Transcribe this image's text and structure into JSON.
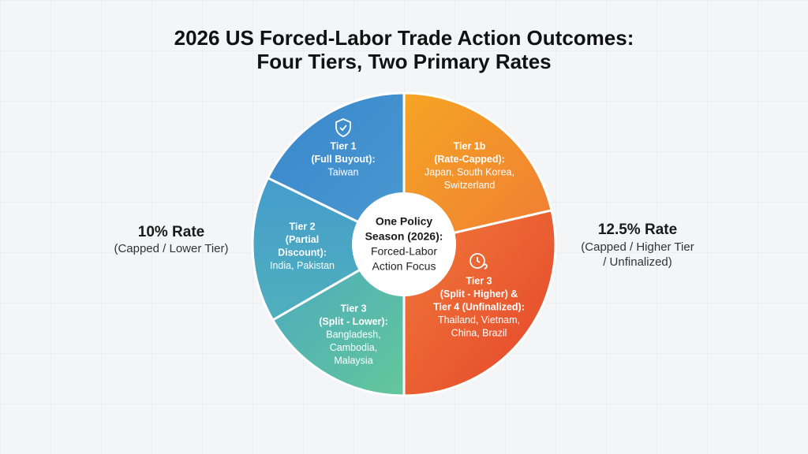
{
  "title": [
    "2026 US Forced-Labor Trade Action Outcomes:",
    "Four Tiers, Two Primary Rates"
  ],
  "left_label": {
    "heading": "10% Rate",
    "lines": [
      "(Capped / Lower Tier)"
    ]
  },
  "right_label": {
    "heading": "12.5% Rate",
    "lines": [
      "(Capped / Higher Tier",
      "/ Unfinalized)"
    ]
  },
  "center": {
    "label": [
      "One Policy",
      "Season (2026):"
    ],
    "lines": [
      "Forced-Labor",
      "Action Focus"
    ]
  },
  "segments": [
    {
      "label": [
        "Tier 1",
        "(Full Buyout):"
      ],
      "countries": [
        "Taiwan"
      ]
    },
    {
      "label": [
        "Tier 1b",
        "(Rate-Capped):"
      ],
      "countries": [
        "Japan, South Korea,",
        "Switzerland"
      ]
    },
    {
      "label": [
        "Tier 3",
        "(Split - Higher) &",
        "Tier 4 (Unfinalized):"
      ],
      "countries": [
        "Thailand, Vietnam,",
        "China, Brazil"
      ]
    },
    {
      "label": [
        "Tier 3",
        "(Split - Lower):"
      ],
      "countries": [
        "Bangladesh,",
        "Cambodia,",
        "Malaysia"
      ]
    },
    {
      "label": [
        "Tier 2",
        "(Partial",
        "Discount):"
      ],
      "countries": [
        "India, Pakistan"
      ]
    }
  ]
}
